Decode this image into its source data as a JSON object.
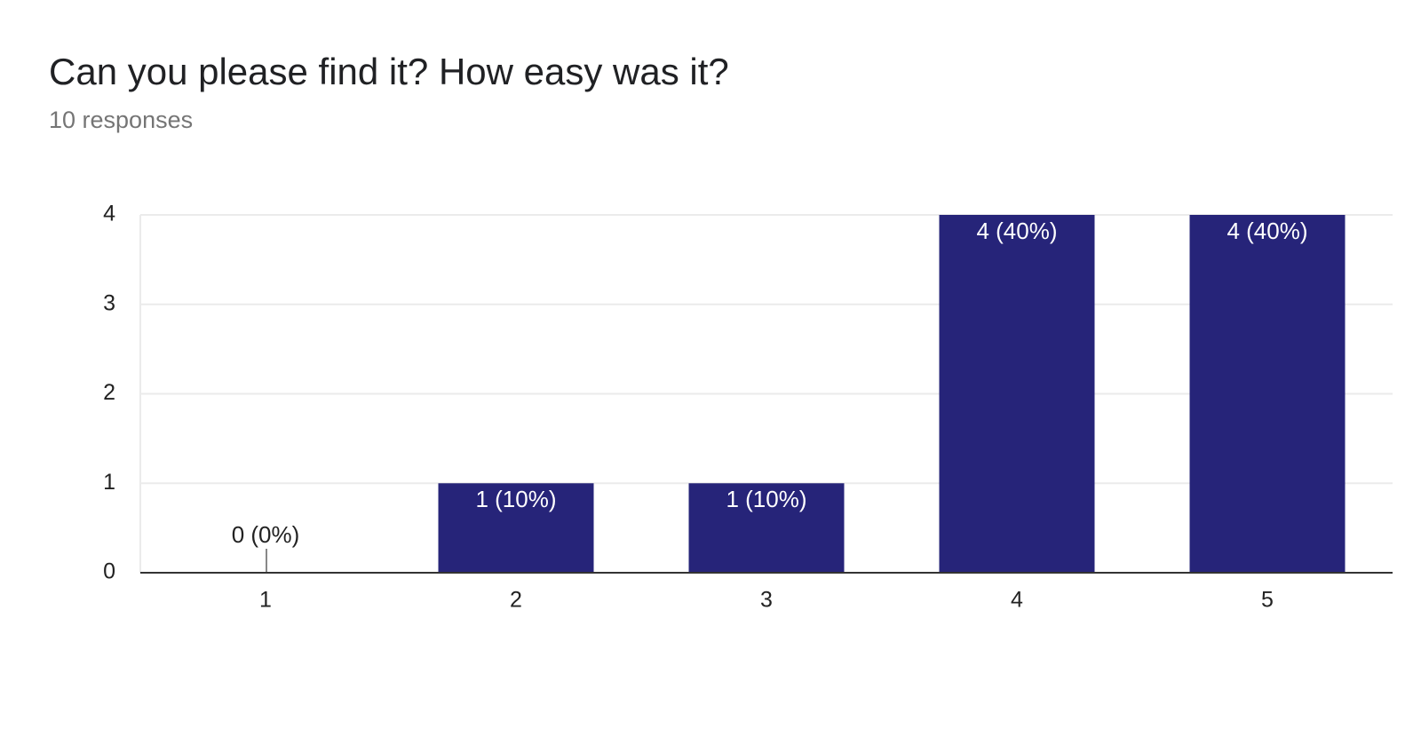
{
  "chart_data": {
    "type": "bar",
    "title": "Can you please find it? How easy was it?",
    "subtitle": "10 responses",
    "categories": [
      "1",
      "2",
      "3",
      "4",
      "5"
    ],
    "values": [
      0,
      1,
      1,
      4,
      4
    ],
    "value_labels": [
      "0 (0%)",
      "1 (10%)",
      "1 (10%)",
      "4 (40%)",
      "4 (40%)"
    ],
    "color": "#262479",
    "ylim": [
      0,
      4
    ],
    "yticks": [
      0,
      1,
      2,
      3,
      4
    ],
    "grid": true
  }
}
